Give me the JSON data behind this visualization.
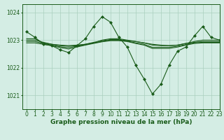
{
  "title": "Graphe pression niveau de la mer (hPa)",
  "background_color": "#d4ede4",
  "grid_color": "#aacfbe",
  "line_color": "#1a5c1a",
  "xlim": [
    -0.5,
    23
  ],
  "ylim": [
    1020.5,
    1024.3
  ],
  "yticks": [
    1021,
    1022,
    1023,
    1024
  ],
  "xticks": [
    0,
    1,
    2,
    3,
    4,
    5,
    6,
    7,
    8,
    9,
    10,
    11,
    12,
    13,
    14,
    15,
    16,
    17,
    18,
    19,
    20,
    21,
    22,
    23
  ],
  "series": [
    {
      "x": [
        0,
        1,
        2,
        3,
        4,
        5,
        6,
        7,
        8,
        9,
        10,
        11,
        12,
        13,
        14,
        15,
        16,
        17,
        18,
        19,
        20,
        21,
        22,
        23
      ],
      "y": [
        1023.3,
        1023.1,
        1022.85,
        1022.8,
        1022.65,
        1022.55,
        1022.8,
        1023.05,
        1023.5,
        1023.85,
        1023.65,
        1023.1,
        1022.75,
        1022.1,
        1021.6,
        1021.05,
        1021.4,
        1022.1,
        1022.6,
        1022.75,
        1023.15,
        1023.5,
        1023.1,
        1023.0
      ],
      "has_marker": true
    },
    {
      "x": [
        0,
        1,
        2,
        3,
        4,
        5,
        6,
        7,
        8,
        9,
        10,
        11,
        12,
        13,
        14,
        15,
        16,
        17,
        18,
        19,
        20,
        21,
        22,
        23
      ],
      "y": [
        1023.05,
        1023.05,
        1022.9,
        1022.85,
        1022.82,
        1022.8,
        1022.82,
        1022.85,
        1022.9,
        1023.0,
        1023.05,
        1023.05,
        1023.0,
        1022.95,
        1022.9,
        1022.85,
        1022.82,
        1022.8,
        1022.82,
        1022.88,
        1022.95,
        1023.0,
        1023.0,
        1023.0
      ],
      "has_marker": false
    },
    {
      "x": [
        0,
        1,
        2,
        3,
        4,
        5,
        6,
        7,
        8,
        9,
        10,
        11,
        12,
        13,
        14,
        15,
        16,
        17,
        18,
        19,
        20,
        21,
        22,
        23
      ],
      "y": [
        1023.0,
        1023.0,
        1022.92,
        1022.85,
        1022.8,
        1022.78,
        1022.8,
        1022.85,
        1022.92,
        1022.98,
        1023.02,
        1023.02,
        1022.98,
        1022.95,
        1022.9,
        1022.82,
        1022.8,
        1022.8,
        1022.82,
        1022.88,
        1022.92,
        1022.95,
        1022.95,
        1022.95
      ],
      "has_marker": false
    },
    {
      "x": [
        0,
        1,
        2,
        3,
        4,
        5,
        6,
        7,
        8,
        9,
        10,
        11,
        12,
        13,
        14,
        15,
        16,
        17,
        18,
        19,
        20,
        21,
        22,
        23
      ],
      "y": [
        1022.95,
        1022.95,
        1022.88,
        1022.82,
        1022.76,
        1022.73,
        1022.78,
        1022.83,
        1022.9,
        1022.95,
        1023.0,
        1023.0,
        1022.96,
        1022.9,
        1022.85,
        1022.74,
        1022.74,
        1022.74,
        1022.78,
        1022.84,
        1022.9,
        1022.92,
        1022.92,
        1022.92
      ],
      "has_marker": false
    },
    {
      "x": [
        0,
        1,
        2,
        3,
        4,
        5,
        6,
        7,
        8,
        9,
        10,
        11,
        12,
        13,
        14,
        15,
        16,
        17,
        18,
        19,
        20,
        21,
        22,
        23
      ],
      "y": [
        1022.9,
        1022.9,
        1022.85,
        1022.8,
        1022.73,
        1022.68,
        1022.75,
        1022.82,
        1022.88,
        1022.94,
        1022.98,
        1022.98,
        1022.95,
        1022.88,
        1022.82,
        1022.7,
        1022.7,
        1022.7,
        1022.75,
        1022.82,
        1022.88,
        1022.9,
        1022.9,
        1022.9
      ],
      "has_marker": false
    }
  ],
  "marker": "D",
  "marker_size": 2.0,
  "line_width": 0.8,
  "tick_fontsize": 5.5,
  "label_fontsize": 6.5
}
